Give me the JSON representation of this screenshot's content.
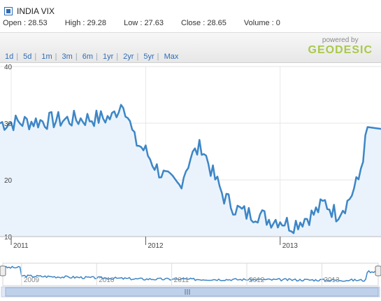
{
  "header": {
    "series_title": "INDIA VIX",
    "stats": [
      {
        "label": "Open",
        "value": "28.53"
      },
      {
        "label": "High",
        "value": "29.28"
      },
      {
        "label": "Low",
        "value": "27.63"
      },
      {
        "label": "Close",
        "value": "28.65"
      },
      {
        "label": "Volume",
        "value": "0"
      }
    ]
  },
  "range_buttons": [
    "1d",
    "5d",
    "1m",
    "3m",
    "6m",
    "1yr",
    "2yr",
    "5yr",
    "Max"
  ],
  "branding": {
    "powered_by": "powered by",
    "brand": "GEODESIC"
  },
  "colors": {
    "line": "#3d86c6",
    "fill": "#eaf3fc",
    "brand": "#a9c94a"
  },
  "icons": {
    "left_handle": "range-handle-left-icon",
    "right_handle": "range-handle-right-icon",
    "grip": "scroll-grip-icon"
  },
  "chart_data": {
    "type": "area",
    "title": "INDIA VIX",
    "xlabel": "",
    "ylabel": "",
    "ylim": [
      10,
      40
    ],
    "yticks": [
      10,
      20,
      30,
      40
    ],
    "xticks": [
      "2011",
      "2012",
      "2013"
    ],
    "grid": true,
    "series": [
      {
        "x": [
          "2011-10",
          "2011-11",
          "2011-12",
          "2012-01",
          "2012-02",
          "2012-03",
          "2012-04",
          "2012-05",
          "2012-06",
          "2012-07",
          "2012-08",
          "2012-09",
          "2012-10",
          "2012-11",
          "2012-12",
          "2013-01",
          "2013-02",
          "2013-03",
          "2013-04",
          "2013-05",
          "2013-06",
          "2013-07",
          "2013-08",
          "2013-09"
        ],
        "values": [
          31,
          34,
          27,
          25,
          22,
          20,
          19,
          24,
          26,
          21,
          17,
          15,
          14,
          14,
          13,
          13,
          12,
          13,
          14,
          16,
          14,
          16,
          20,
          31
        ]
      }
    ],
    "navigator": {
      "xticks": [
        "2009",
        "2010",
        "2011",
        "2012",
        "2013"
      ]
    }
  }
}
